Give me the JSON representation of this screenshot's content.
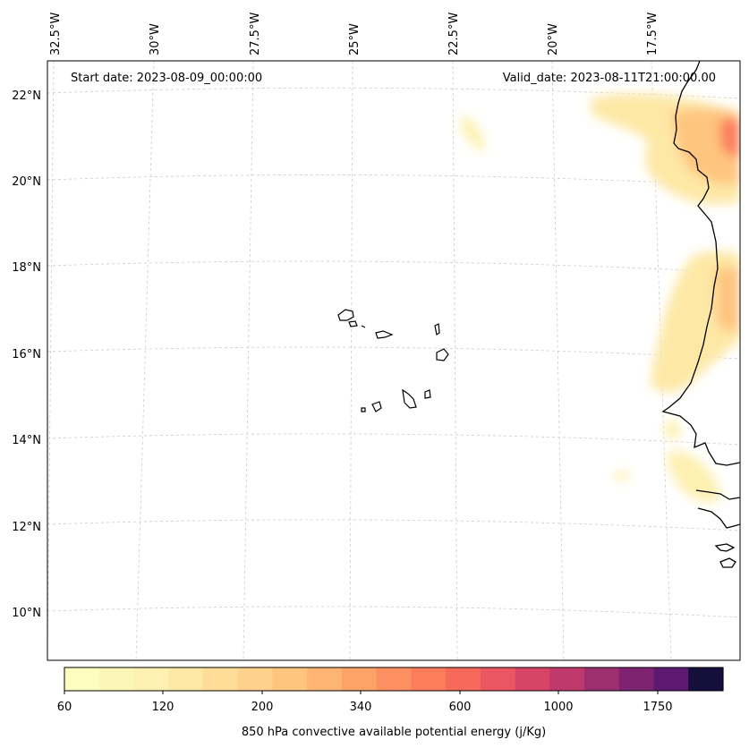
{
  "header": {
    "start_date": "Start date: 2023-08-09_00:00:00",
    "valid_date": "Valid_date: 2023-08-11T21:00:00.00"
  },
  "map": {
    "longitude_labels": [
      "32.5°W",
      "30°W",
      "27.5°W",
      "25°W",
      "22.5°W",
      "20°W",
      "17.5°W"
    ],
    "latitude_labels": [
      "22°N",
      "20°N",
      "18°N",
      "16°N",
      "14°N",
      "12°N",
      "10°N"
    ],
    "field": "850 hPa convective available potential energy"
  },
  "colorbar": {
    "label": "850 hPa convective available potential energy (j/Kg)",
    "tick_labels": [
      "60",
      "120",
      "200",
      "340",
      "600",
      "1000",
      "1750"
    ],
    "colors": [
      "#fcfdbf",
      "#fcf7b9",
      "#fdf0b0",
      "#fde8a5",
      "#fedd98",
      "#fed28c",
      "#fec57f",
      "#feb473",
      "#fea368",
      "#fd9060",
      "#fb7d5a",
      "#f6695b",
      "#ea5661",
      "#d64566",
      "#c0396c",
      "#9d2f6f",
      "#7d2370",
      "#5e1a70",
      "#140f3b"
    ]
  }
}
